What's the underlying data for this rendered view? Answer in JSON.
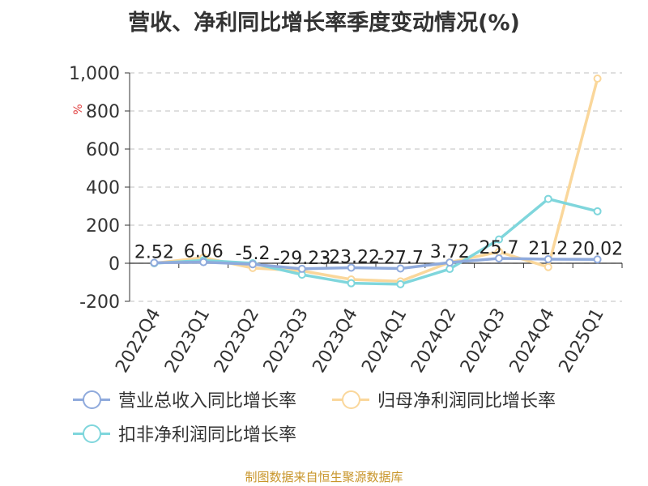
{
  "title": "营收、净利同比增长率季度变动情况(%)",
  "source": "制图数据来自恒生聚源数据库",
  "chart_data": {
    "type": "line",
    "unit_label": "%",
    "categories": [
      "2022Q4",
      "2023Q1",
      "2023Q2",
      "2023Q3",
      "2023Q4",
      "2024Q1",
      "2024Q2",
      "2024Q3",
      "2024Q4",
      "2025Q1"
    ],
    "ylim": [
      -200,
      1000
    ],
    "yticks": [
      -200,
      0,
      200,
      400,
      600,
      800,
      1000
    ],
    "ytick_labels": [
      "-200",
      "0",
      "200",
      "400",
      "600",
      "800",
      "1,000"
    ],
    "grid": true,
    "legend_position": "bottom-left",
    "series": [
      {
        "name": "营业总收入同比增长率",
        "color": "#8faadc",
        "values": [
          2.52,
          6.06,
          -5.2,
          -29.23,
          -23.22,
          -27.7,
          3.72,
          25.7,
          21.2,
          20.02
        ],
        "labels": [
          "2.52",
          "6.06",
          "-5.2",
          "-29.23",
          "-23.22",
          "-27.7",
          "3.72",
          "25.7",
          "21.2",
          "20.02"
        ]
      },
      {
        "name": "归母净利润同比增长率",
        "color": "#fad79b",
        "values": [
          0,
          30,
          -25,
          -40,
          -85,
          -95,
          5,
          60,
          -20,
          970
        ]
      },
      {
        "name": "扣非净利润同比增长率",
        "color": "#7fd6dc",
        "values": [
          0,
          15,
          0,
          -60,
          -105,
          -110,
          -30,
          125,
          338,
          273
        ]
      }
    ]
  }
}
